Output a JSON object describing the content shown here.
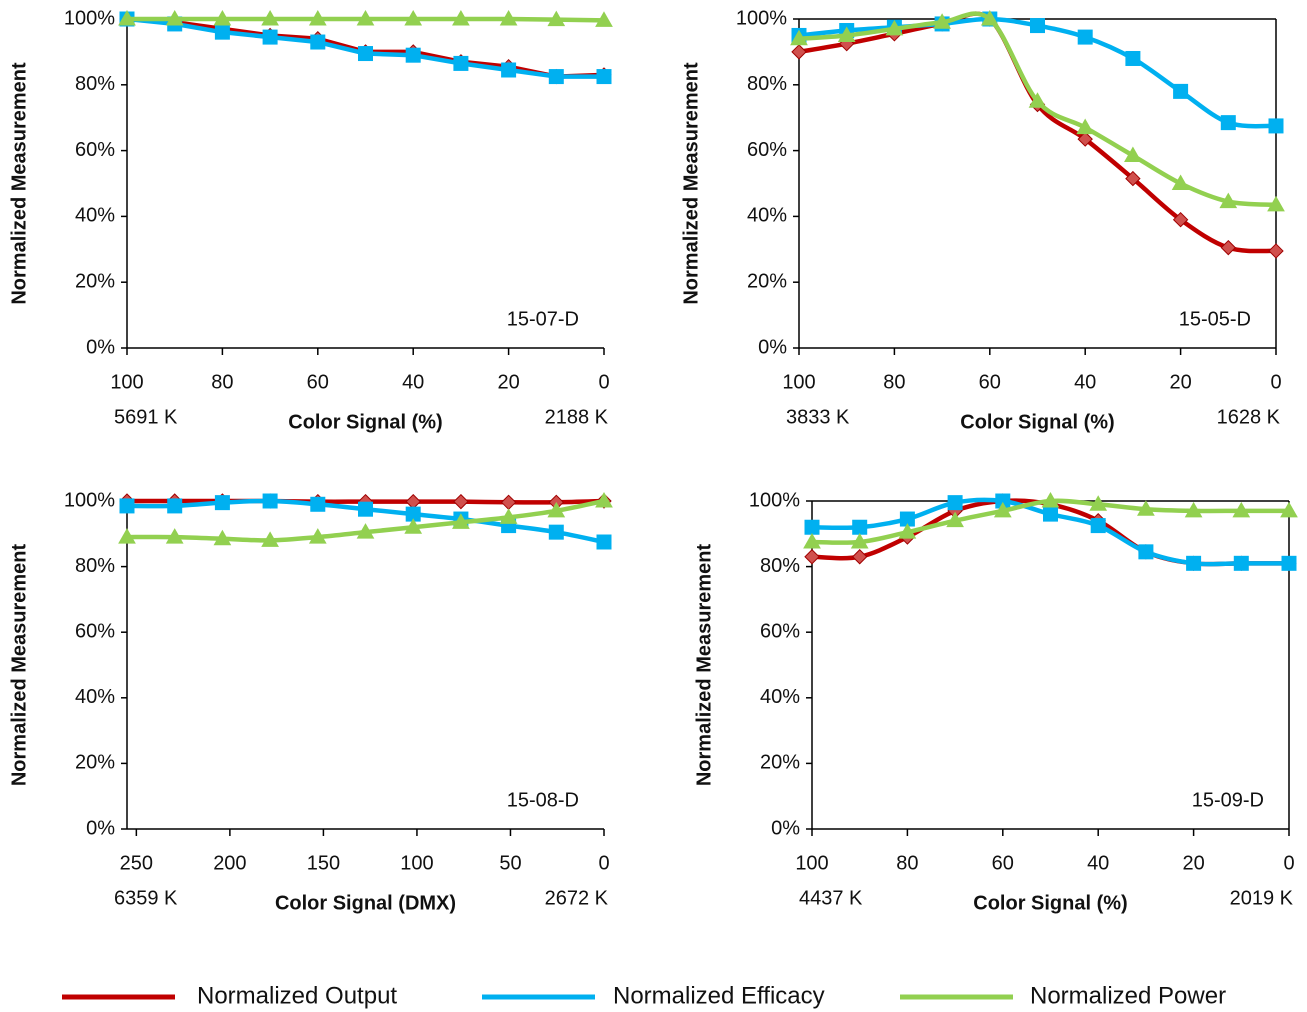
{
  "chart_data": [
    {
      "type": "line",
      "smooth": false,
      "frame": false,
      "y_label": "Normalized Measurement",
      "x_label": "Color Signal (%)",
      "x_start_label": "5691 K",
      "x_end_label": "2188 K",
      "panel_label": "15-07-D",
      "x": [
        100,
        90,
        80,
        70,
        60,
        50,
        40,
        30,
        20,
        10,
        0
      ],
      "xlim": [
        100,
        0
      ],
      "xticks": [
        100,
        80,
        60,
        40,
        20,
        0
      ],
      "ylim": [
        0,
        100
      ],
      "yticks": [
        {
          "value": 0,
          "label": "0%"
        },
        {
          "value": 20,
          "label": "20%"
        },
        {
          "value": 40,
          "label": "40%"
        },
        {
          "value": 60,
          "label": "60%"
        },
        {
          "value": 80,
          "label": "80%"
        },
        {
          "value": 100,
          "label": "100%"
        }
      ],
      "series": [
        {
          "name": "Normalized Output",
          "color": "#c00000",
          "values": [
            100,
            99,
            97,
            95,
            94,
            90,
            90,
            87,
            85.5,
            82.5,
            83
          ]
        },
        {
          "name": "Normalized Efficacy",
          "color": "#00b0f0",
          "values": [
            100,
            98.5,
            96,
            94.5,
            93,
            89.5,
            89,
            86.5,
            84.5,
            82.5,
            82.5
          ]
        },
        {
          "name": "Normalized Power",
          "color": "#92d050",
          "values": [
            100,
            100,
            100,
            100,
            100,
            100,
            100,
            100,
            100,
            99.8,
            99.6
          ]
        }
      ]
    },
    {
      "type": "line",
      "smooth": true,
      "frame": true,
      "y_label": "Normalized Measurement",
      "x_label": "Color Signal (%)",
      "x_start_label": "3833 K",
      "x_end_label": "1628 K",
      "panel_label": "15-05-D",
      "x": [
        100,
        90,
        80,
        70,
        60,
        50,
        40,
        30,
        20,
        10,
        0
      ],
      "xlim": [
        100,
        0
      ],
      "xticks": [
        100,
        80,
        60,
        40,
        20,
        0
      ],
      "ylim": [
        0,
        100
      ],
      "yticks": [
        {
          "value": 0,
          "label": "0%"
        },
        {
          "value": 20,
          "label": "20%"
        },
        {
          "value": 40,
          "label": "40%"
        },
        {
          "value": 60,
          "label": "60%"
        },
        {
          "value": 80,
          "label": "80%"
        },
        {
          "value": 100,
          "label": "100%"
        }
      ],
      "series": [
        {
          "name": "Normalized Output",
          "color": "#c00000",
          "values": [
            90,
            92.5,
            95.5,
            98.5,
            100,
            74,
            63.5,
            51.5,
            39,
            30.5,
            29.5
          ]
        },
        {
          "name": "Normalized Efficacy",
          "color": "#00b0f0",
          "values": [
            95,
            96.5,
            97.5,
            98.5,
            100,
            98,
            94.5,
            88,
            78,
            68.5,
            67.5
          ]
        },
        {
          "name": "Normalized Power",
          "color": "#92d050",
          "values": [
            94,
            95,
            97,
            99,
            100,
            75,
            67,
            58.5,
            50,
            44.5,
            43.5
          ]
        }
      ]
    },
    {
      "type": "line",
      "smooth": true,
      "frame": false,
      "y_label": "Normalized Measurement",
      "x_label": "Color Signal (DMX)",
      "x_start_label": "6359 K",
      "x_end_label": "2672 K",
      "panel_label": "15-08-D",
      "x": [
        255,
        229.5,
        204,
        178.5,
        153,
        127.5,
        102,
        76.5,
        51,
        25.5,
        0
      ],
      "xlim": [
        255,
        0
      ],
      "xticks": [
        250,
        200,
        150,
        100,
        50,
        0
      ],
      "ylim": [
        0,
        100
      ],
      "yticks": [
        {
          "value": 0,
          "label": "0%"
        },
        {
          "value": 20,
          "label": "20%"
        },
        {
          "value": 40,
          "label": "40%"
        },
        {
          "value": 60,
          "label": "60%"
        },
        {
          "value": 80,
          "label": "80%"
        },
        {
          "value": 100,
          "label": "100%"
        }
      ],
      "series": [
        {
          "name": "Normalized Output",
          "color": "#c00000",
          "values": [
            100,
            100,
            100,
            100,
            99.8,
            99.8,
            99.8,
            99.8,
            99.6,
            99.6,
            100
          ]
        },
        {
          "name": "Normalized Efficacy",
          "color": "#00b0f0",
          "values": [
            98.5,
            98.5,
            99.5,
            100,
            99,
            97.5,
            96,
            94.5,
            92.5,
            90.5,
            87.5
          ]
        },
        {
          "name": "Normalized Power",
          "color": "#92d050",
          "values": [
            89,
            89,
            88.5,
            88,
            89,
            90.5,
            92,
            93.5,
            95,
            97,
            100
          ]
        }
      ]
    },
    {
      "type": "line",
      "smooth": true,
      "frame": true,
      "y_label": "Normalized Measurement",
      "x_label": "Color Signal (%)",
      "x_start_label": "4437 K",
      "x_end_label": "2019 K",
      "panel_label": "15-09-D",
      "x": [
        100,
        90,
        80,
        70,
        60,
        50,
        40,
        30,
        20,
        10,
        0
      ],
      "xlim": [
        100,
        0
      ],
      "xticks": [
        100,
        80,
        60,
        40,
        20,
        0
      ],
      "ylim": [
        0,
        100
      ],
      "yticks": [
        {
          "value": 0,
          "label": "0%"
        },
        {
          "value": 20,
          "label": "20%"
        },
        {
          "value": 40,
          "label": "40%"
        },
        {
          "value": 60,
          "label": "60%"
        },
        {
          "value": 80,
          "label": "80%"
        },
        {
          "value": 100,
          "label": "100%"
        }
      ],
      "series": [
        {
          "name": "Normalized Output",
          "color": "#c00000",
          "values": [
            83,
            83,
            89,
            97,
            100,
            99,
            94,
            84.5,
            81,
            81,
            81
          ]
        },
        {
          "name": "Normalized Efficacy",
          "color": "#00b0f0",
          "values": [
            92,
            92,
            94.5,
            99.5,
            100,
            96,
            92.5,
            84.5,
            81,
            81,
            81
          ]
        },
        {
          "name": "Normalized Power",
          "color": "#92d050",
          "values": [
            87.5,
            87.5,
            90.5,
            94,
            97,
            100,
            99,
            97.5,
            97,
            97,
            97
          ]
        }
      ]
    }
  ]
}
